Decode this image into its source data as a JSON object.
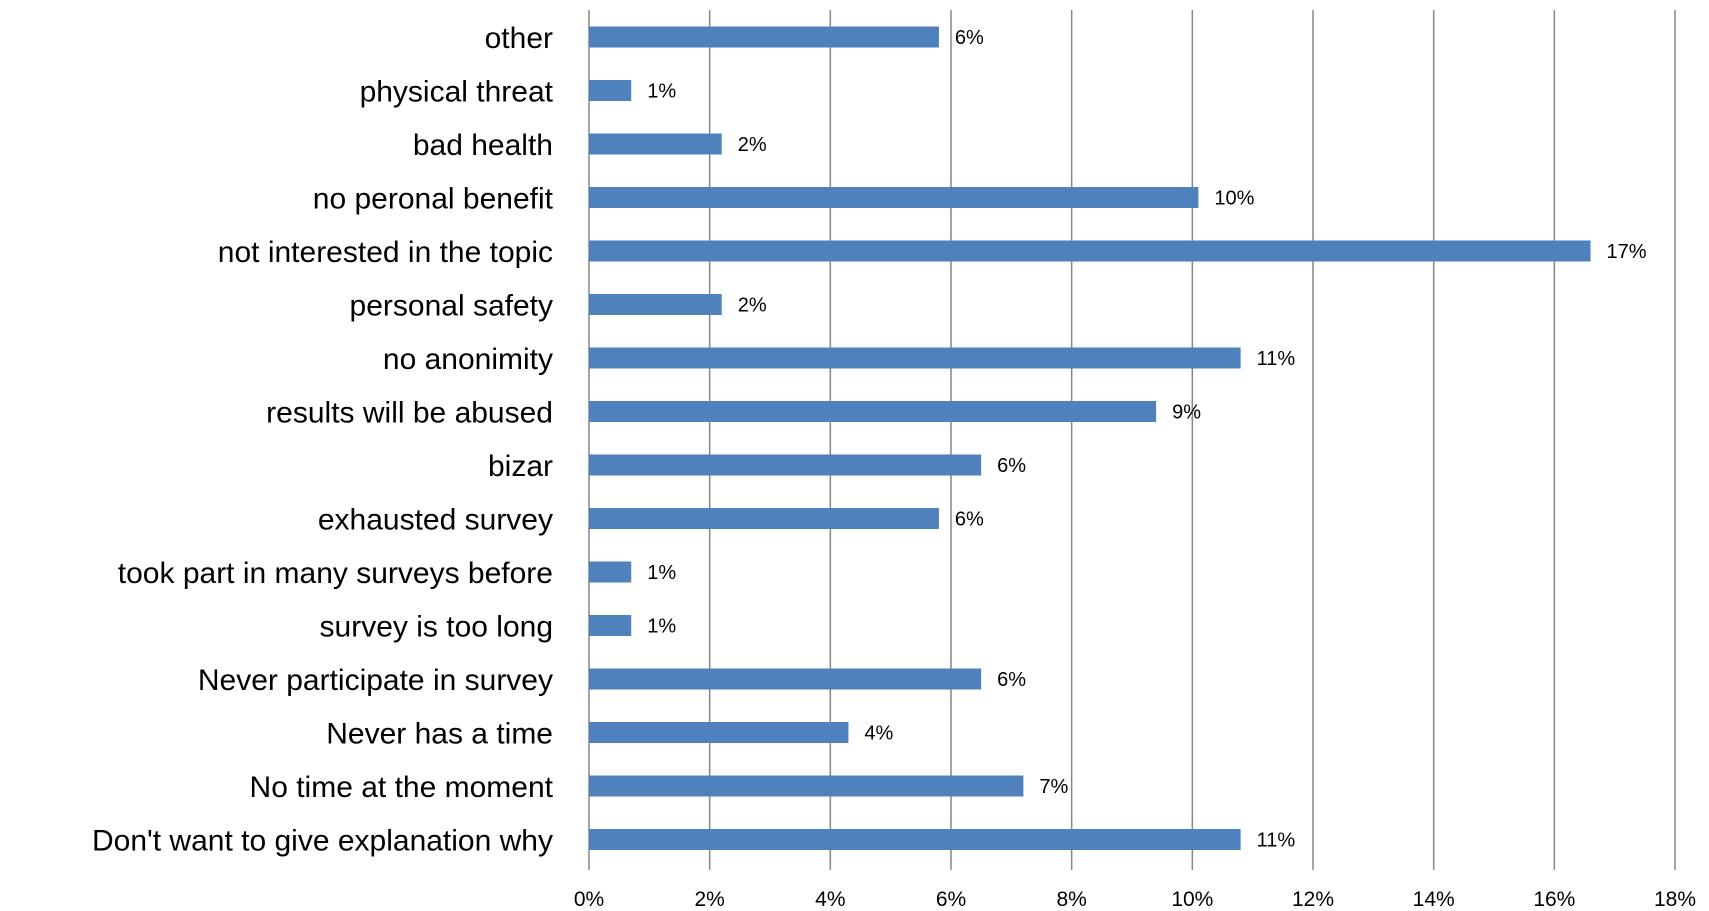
{
  "chart_data": {
    "type": "bar",
    "orientation": "horizontal",
    "categories": [
      "other",
      "physical threat",
      "bad health",
      "no peronal benefit",
      "not interested in the topic",
      "personal safety",
      "no anonimity",
      "results will be abused",
      "bizar",
      "exhausted survey",
      "took part in many surveys before",
      "survey is too long",
      "Never participate in survey",
      "Never has a time",
      "No time at the moment",
      "Don't want to give explanation why"
    ],
    "values": [
      5.8,
      0.7,
      2.2,
      10.1,
      16.6,
      2.2,
      10.8,
      9.4,
      6.5,
      5.8,
      0.7,
      0.7,
      6.5,
      4.3,
      7.2,
      10.8
    ],
    "data_labels": [
      "6%",
      "1%",
      "2%",
      "10%",
      "17%",
      "2%",
      "11%",
      "9%",
      "6%",
      "6%",
      "1%",
      "1%",
      "6%",
      "4%",
      "7%",
      "11%"
    ],
    "xlim": [
      0,
      18
    ],
    "xticks": [
      0,
      2,
      4,
      6,
      8,
      10,
      12,
      14,
      16,
      18
    ],
    "xtick_labels": [
      "0%",
      "2%",
      "4%",
      "6%",
      "8%",
      "10%",
      "12%",
      "14%",
      "16%",
      "18%"
    ],
    "bar_color": "#4F81BD",
    "grid": true,
    "title": "",
    "xlabel": "",
    "ylabel": ""
  }
}
